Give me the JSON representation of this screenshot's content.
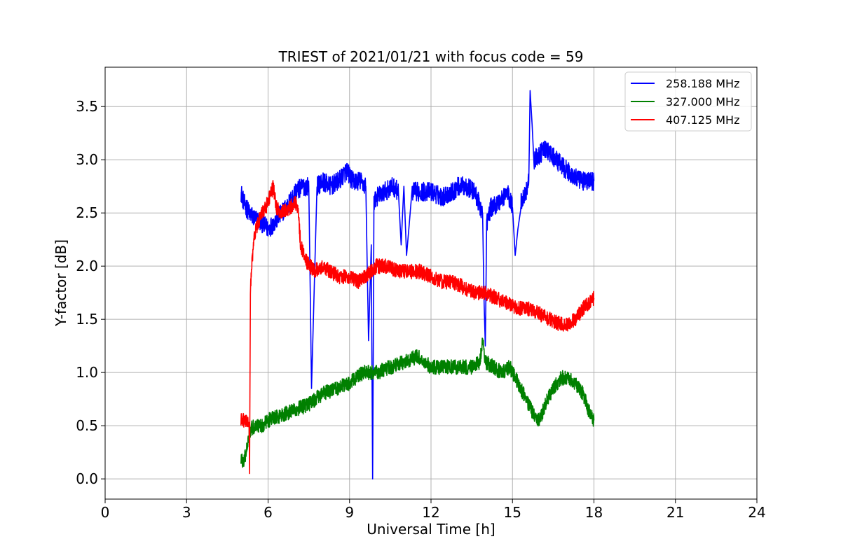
{
  "chart_data": {
    "type": "line",
    "title": "TRIEST of 2021/01/21 with focus code = 59",
    "xlabel": "Universal Time [h]",
    "ylabel": "Y-factor [dB]",
    "xlim": [
      0,
      24
    ],
    "ylim": [
      -0.19,
      3.87
    ],
    "xticks": [
      0,
      3,
      6,
      9,
      12,
      15,
      18,
      21,
      24
    ],
    "xtick_labels": [
      "0",
      "3",
      "6",
      "9",
      "12",
      "15",
      "18",
      "21",
      "24"
    ],
    "yticks": [
      0.0,
      0.5,
      1.0,
      1.5,
      2.0,
      2.5,
      3.0,
      3.5
    ],
    "ytick_labels": [
      "0.0",
      "0.5",
      "1.0",
      "1.5",
      "2.0",
      "2.5",
      "3.0",
      "3.5"
    ],
    "grid": true,
    "legend_position": "top-right",
    "series": [
      {
        "name": "258.188 MHz",
        "color": "#0000ff",
        "noise": 0.09,
        "x": [
          5.0,
          5.1,
          5.3,
          5.5,
          5.8,
          6.0,
          6.2,
          6.5,
          6.8,
          7.0,
          7.3,
          7.5,
          7.6,
          7.8,
          8.0,
          8.3,
          8.6,
          8.9,
          9.1,
          9.4,
          9.6,
          9.7,
          9.8,
          9.85,
          9.9,
          10.0,
          10.3,
          10.6,
          10.8,
          10.9,
          11.0,
          11.1,
          11.3,
          11.6,
          12.0,
          12.4,
          12.8,
          13.0,
          13.3,
          13.6,
          13.9,
          13.95,
          14.0,
          14.05,
          14.2,
          14.5,
          14.8,
          15.0,
          15.1,
          15.3,
          15.5,
          15.6,
          15.65,
          15.8,
          16.0,
          16.2,
          16.4,
          16.6,
          16.8,
          17.0,
          17.2,
          17.5,
          17.8,
          18.0
        ],
        "y": [
          2.7,
          2.6,
          2.5,
          2.45,
          2.4,
          2.35,
          2.4,
          2.5,
          2.6,
          2.7,
          2.75,
          2.75,
          0.85,
          2.75,
          2.8,
          2.75,
          2.8,
          2.9,
          2.8,
          2.8,
          2.75,
          1.3,
          2.2,
          0.0,
          2.6,
          2.65,
          2.7,
          2.75,
          2.7,
          2.2,
          2.75,
          2.1,
          2.7,
          2.7,
          2.7,
          2.65,
          2.7,
          2.75,
          2.75,
          2.7,
          2.5,
          1.7,
          1.25,
          2.4,
          2.55,
          2.6,
          2.7,
          2.55,
          2.1,
          2.6,
          2.7,
          2.8,
          3.65,
          3.0,
          3.05,
          3.1,
          3.05,
          3.0,
          2.95,
          2.9,
          2.85,
          2.8,
          2.8,
          2.8
        ]
      },
      {
        "name": "327.000 MHz",
        "color": "#008000",
        "noise": 0.07,
        "x": [
          5.0,
          5.1,
          5.2,
          5.3,
          5.5,
          5.8,
          6.0,
          6.5,
          7.0,
          7.5,
          8.0,
          8.5,
          9.0,
          9.5,
          10.0,
          10.5,
          11.0,
          11.5,
          12.0,
          12.5,
          13.0,
          13.5,
          13.8,
          13.9,
          14.0,
          14.3,
          14.6,
          14.9,
          15.2,
          15.5,
          15.8,
          16.0,
          16.2,
          16.5,
          16.8,
          17.0,
          17.3,
          17.6,
          17.8,
          18.0
        ],
        "y": [
          0.2,
          0.15,
          0.25,
          0.45,
          0.5,
          0.5,
          0.55,
          0.6,
          0.65,
          0.7,
          0.8,
          0.85,
          0.9,
          1.0,
          1.0,
          1.05,
          1.1,
          1.15,
          1.05,
          1.05,
          1.05,
          1.05,
          1.1,
          1.3,
          1.1,
          1.05,
          1.0,
          1.05,
          0.9,
          0.75,
          0.6,
          0.55,
          0.7,
          0.85,
          0.95,
          0.95,
          0.9,
          0.8,
          0.65,
          0.55
        ]
      },
      {
        "name": "407.125 MHz",
        "color": "#ff0000",
        "noise": 0.07,
        "x": [
          5.0,
          5.2,
          5.3,
          5.32,
          5.35,
          5.4,
          5.5,
          5.7,
          6.0,
          6.2,
          6.3,
          6.5,
          6.8,
          7.0,
          7.1,
          7.2,
          7.4,
          7.7,
          8.0,
          8.3,
          8.6,
          9.0,
          9.3,
          9.6,
          10.0,
          10.4,
          10.8,
          11.2,
          11.6,
          12.0,
          12.4,
          12.8,
          13.2,
          13.6,
          14.0,
          14.4,
          14.8,
          15.2,
          15.6,
          16.0,
          16.4,
          16.8,
          17.0,
          17.3,
          17.6,
          17.8,
          18.0
        ],
        "y": [
          0.55,
          0.55,
          0.5,
          0.05,
          1.8,
          2.0,
          2.3,
          2.45,
          2.6,
          2.75,
          2.55,
          2.5,
          2.55,
          2.6,
          2.55,
          2.2,
          2.05,
          1.95,
          2.0,
          1.95,
          1.9,
          1.9,
          1.85,
          1.9,
          2.0,
          2.0,
          1.95,
          1.95,
          1.95,
          1.9,
          1.85,
          1.85,
          1.8,
          1.75,
          1.75,
          1.7,
          1.65,
          1.6,
          1.6,
          1.55,
          1.5,
          1.45,
          1.45,
          1.5,
          1.6,
          1.65,
          1.7
        ]
      }
    ]
  }
}
